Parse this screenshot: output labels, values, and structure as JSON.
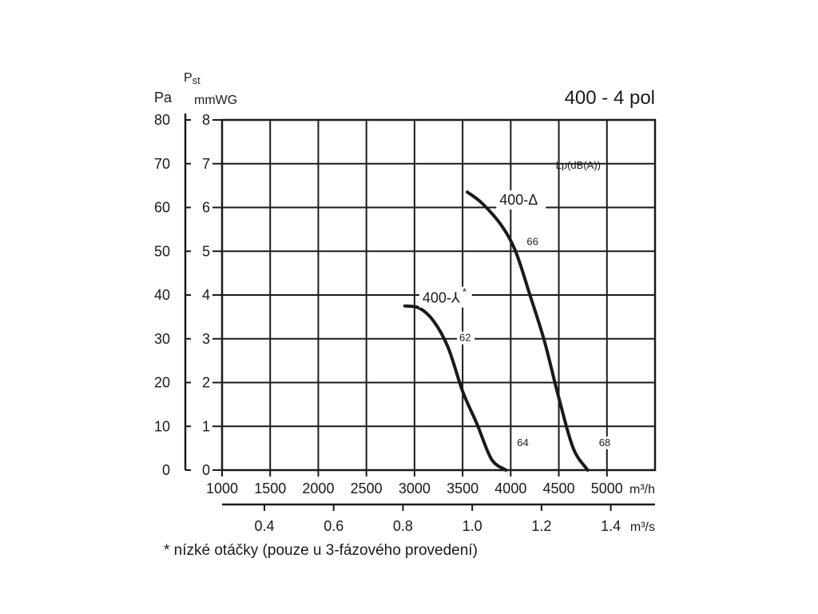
{
  "chart_data": {
    "type": "line",
    "title": "400 - 4 pol",
    "y_left_symbol": "P",
    "y_left_symbol_sub": "st",
    "y_left_unit": "Pa",
    "y_left_ticks": [
      "0",
      "10",
      "20",
      "30",
      "40",
      "50",
      "60",
      "70",
      "80"
    ],
    "y_right_unit": "mmWG",
    "y_right_ticks": [
      "0",
      "1",
      "2",
      "3",
      "4",
      "5",
      "6",
      "7",
      "8"
    ],
    "ylim": [
      0,
      8
    ],
    "x_top_unit": "m³/h",
    "x_top_ticks": [
      "1000",
      "1500",
      "2000",
      "2500",
      "3000",
      "3500",
      "4000",
      "4500",
      "5000"
    ],
    "xlim": [
      1000,
      5500
    ],
    "x_bottom_unit": "m³/s",
    "x_bottom_ticks": [
      "0.4",
      "0.6",
      "0.8",
      "1.0",
      "1.2",
      "1.4"
    ],
    "grid": true,
    "noise_label": "Lp(dB(A))",
    "series": [
      {
        "name": "400-Δ",
        "x": [
          3550,
          3700,
          3900,
          4050,
          4200,
          4350,
          4500,
          4650,
          4800
        ],
        "y": [
          6.35,
          6.1,
          5.6,
          5.0,
          4.0,
          2.95,
          1.65,
          0.5,
          0.0
        ],
        "noise_points": [
          {
            "x": 4050,
            "y": 5.0,
            "label": "66"
          },
          {
            "x": 4800,
            "y": 0.0,
            "label": "68"
          }
        ]
      },
      {
        "name": "400-⅄",
        "marker": "*",
        "x": [
          2900,
          3050,
          3200,
          3350,
          3500,
          3650,
          3800,
          3950
        ],
        "y": [
          3.75,
          3.7,
          3.4,
          2.8,
          1.8,
          1.05,
          0.25,
          0.0
        ],
        "noise_points": [
          {
            "x": 3350,
            "y": 2.8,
            "label": "62"
          },
          {
            "x": 3950,
            "y": 0.0,
            "label": "64"
          }
        ]
      }
    ]
  },
  "footnote": "* nízké otáčky (pouze u 3-fázového provedení)"
}
